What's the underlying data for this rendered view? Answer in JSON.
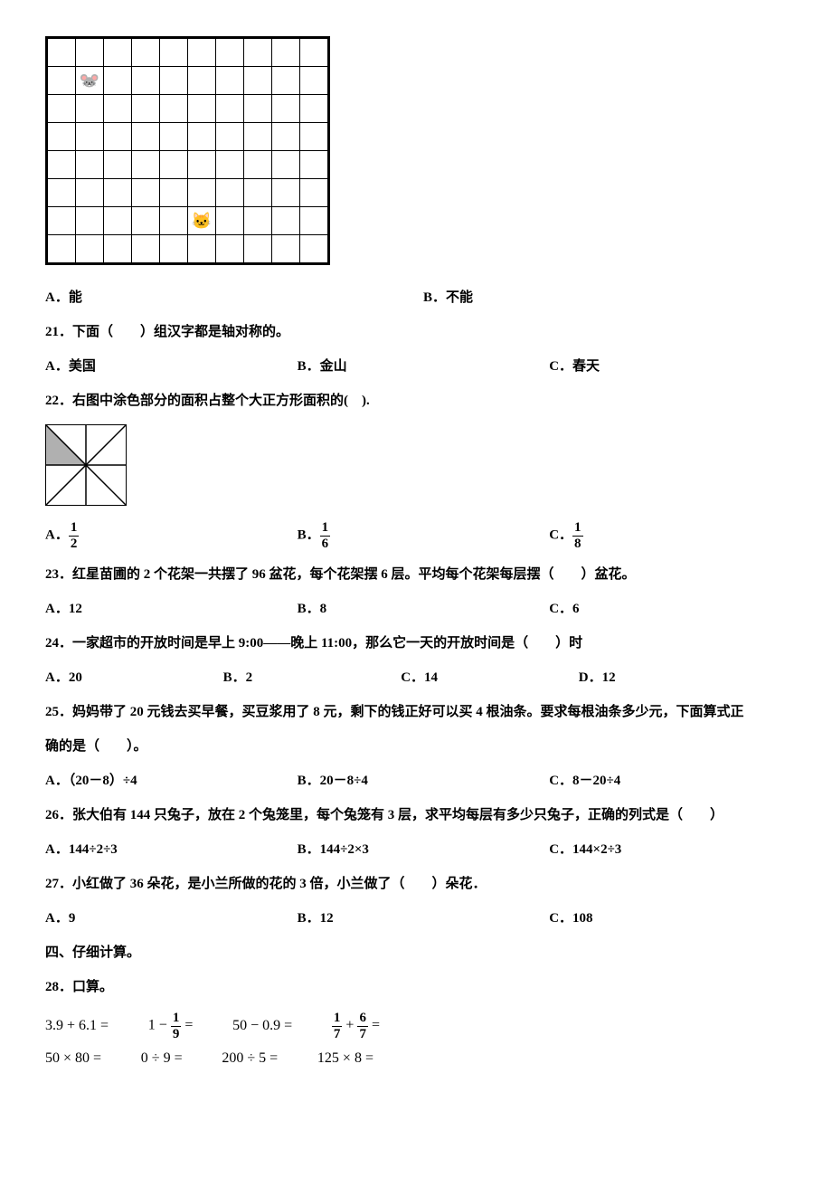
{
  "grid": {
    "cols": 10,
    "rows": 8,
    "mouse": {
      "row": 1,
      "col": 1,
      "emoji": "🐭",
      "color": "#888"
    },
    "cat": {
      "row": 6,
      "col": 5,
      "emoji": "🐱",
      "color": "#c87a28"
    }
  },
  "q20_opts": {
    "A": "能",
    "B": "不能"
  },
  "q21": {
    "num": "21",
    "text": "．下面（　　）组汉字都是轴对称的。",
    "opts": {
      "A": "美国",
      "B": "金山",
      "C": "春天"
    }
  },
  "q22": {
    "num": "22",
    "text": "．右图中涂色部分的面积占整个大正方形面积的(　).",
    "square": {
      "size": 90,
      "stroke": "#000",
      "shaded_fill": "#b0b0b0"
    },
    "opts": {
      "A_num": "1",
      "A_den": "2",
      "B_num": "1",
      "B_den": "6",
      "C_num": "1",
      "C_den": "8"
    }
  },
  "q23": {
    "num": "23",
    "text": "．红星苗圃的 2 个花架一共摆了 96 盆花，每个花架摆 6 层。平均每个花架每层摆（　　）盆花。",
    "opts": {
      "A": "12",
      "B": "8",
      "C": "6"
    }
  },
  "q24": {
    "num": "24",
    "text": "．一家超市的开放时间是早上 9:00——晚上 11:00，那么它一天的开放时间是（　　）时",
    "opts": {
      "A": "20",
      "B": "2",
      "C": "14",
      "D": "12"
    }
  },
  "q25": {
    "num": "25",
    "text1": "．妈妈带了 20 元钱去买早餐，买豆浆用了 8 元，剩下的钱正好可以买 4 根油条。要求每根油条多少元，下面算式正",
    "text2": "确的是（　　）。",
    "opts": {
      "A": "（20－8）÷4",
      "B": "20－8÷4",
      "C": "8－20÷4"
    }
  },
  "q26": {
    "num": "26",
    "text": "．张大伯有 144 只兔子，放在 2 个兔笼里，每个兔笼有 3 层，求平均每层有多少只兔子，正确的列式是（　　）",
    "opts": {
      "A": "144÷2÷3",
      "B": "144÷2×3",
      "C": "144×2÷3"
    }
  },
  "q27": {
    "num": "27",
    "text": "．小红做了 36 朵花，是小兰所做的花的 3 倍，小兰做了（　　）朵花．",
    "opts": {
      "A": "9",
      "B": "12",
      "C": "108"
    }
  },
  "section4": "四、仔细计算。",
  "q28": {
    "num": "28",
    "text": "．口算。",
    "row1": {
      "e1": "3.9 + 6.1 =",
      "e2_pre": "1 − ",
      "e2_num": "1",
      "e2_den": "9",
      "e2_post": " =",
      "e3": "50 − 0.9 =",
      "e4_a_num": "1",
      "e4_a_den": "7",
      "e4_b_num": "6",
      "e4_b_den": "7"
    },
    "row2": {
      "e1": "50 × 80 =",
      "e2": "0 ÷ 9 =",
      "e3": "200 ÷ 5 =",
      "e4": "125 × 8 ="
    }
  }
}
